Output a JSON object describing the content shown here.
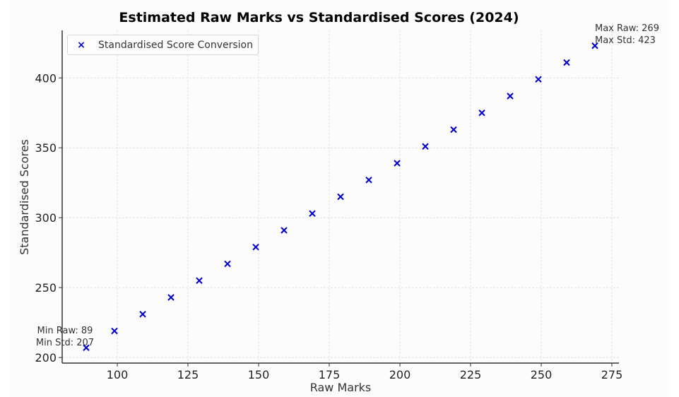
{
  "chart_data": {
    "type": "scatter",
    "title": "Estimated Raw Marks vs Standardised Scores (2024)",
    "xlabel": "Raw Marks",
    "ylabel": "Standardised Scores",
    "xlim": [
      80.5,
      277.5
    ],
    "ylim": [
      196,
      434
    ],
    "xticks": [
      100,
      125,
      150,
      175,
      200,
      225,
      250,
      275
    ],
    "yticks": [
      200,
      250,
      300,
      350,
      400
    ],
    "grid": true,
    "legend_position": "upper left",
    "series": [
      {
        "name": "Standardised Score Conversion",
        "marker": "x",
        "color": "#0000c8",
        "x": [
          89,
          99,
          109,
          119,
          129,
          139,
          149,
          159,
          169,
          179,
          189,
          199,
          209,
          219,
          229,
          239,
          249,
          259,
          269
        ],
        "y": [
          207,
          219,
          231,
          243,
          255,
          267,
          279,
          291,
          303,
          315,
          327,
          339,
          351,
          363,
          375,
          387,
          399,
          411,
          423
        ]
      }
    ],
    "annotations": [
      {
        "text": "Min Raw: 89",
        "text2": "Min Std: 207",
        "x": 89,
        "y": 207
      },
      {
        "text": "Max Raw: 269",
        "text2": "Max Std: 423",
        "x": 269,
        "y": 423
      }
    ]
  },
  "legend": {
    "label": "Standardised Score Conversion",
    "marker": "×"
  },
  "annotations": {
    "min_line1": "Min Raw: 89",
    "min_line2": "Min Std: 207",
    "max_line1": "Max Raw: 269",
    "max_line2": "Max Std: 423"
  }
}
